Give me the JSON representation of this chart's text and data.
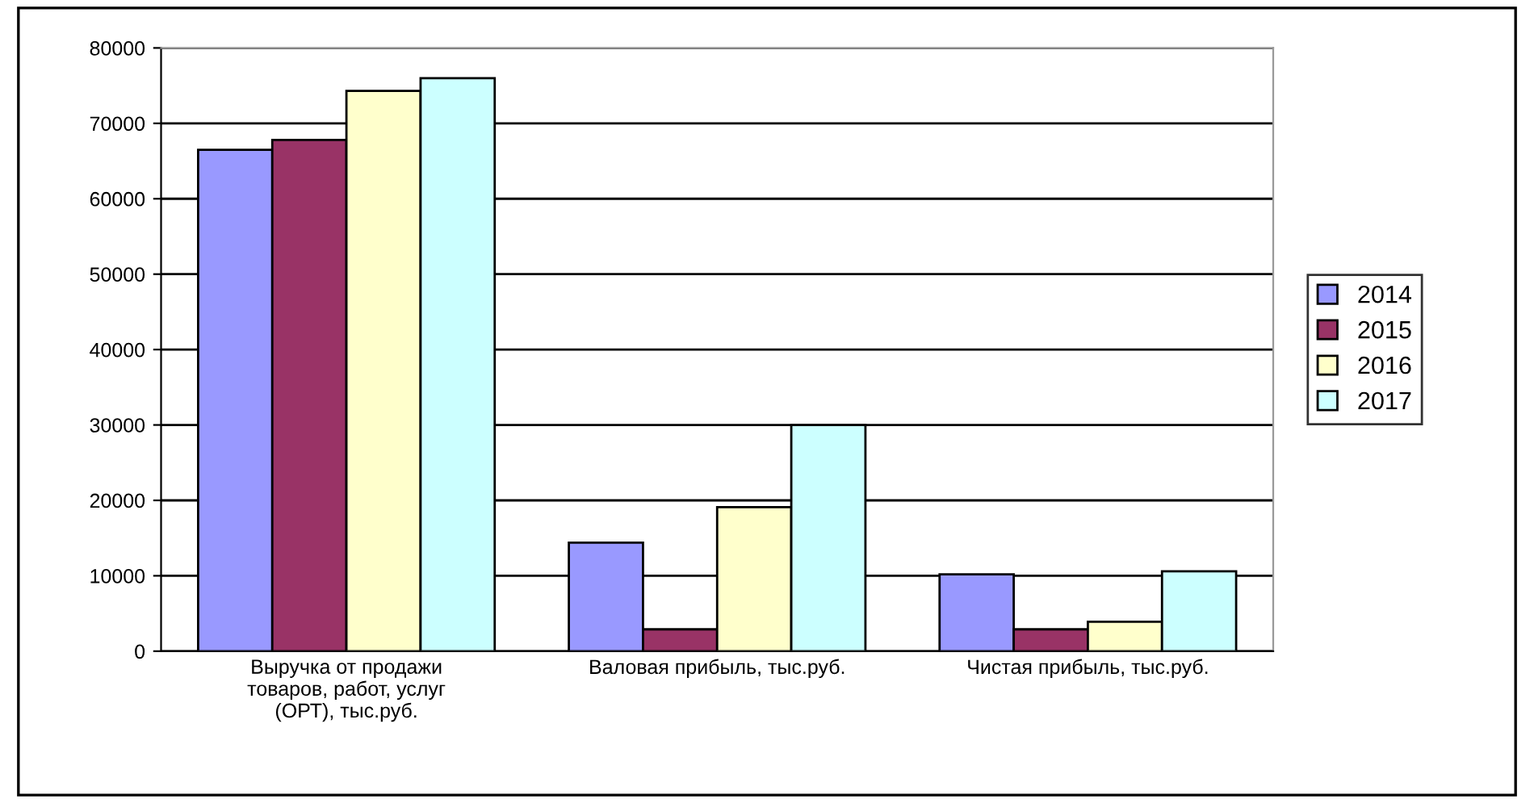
{
  "chart_data": {
    "type": "bar",
    "categories": [
      "Выручка от продажи\nтоваров, работ, услуг\n(ОРТ), тыс.руб.",
      "Валовая прибыль, тыс.руб.",
      "Чистая прибыль, тыс.руб."
    ],
    "series": [
      {
        "name": "2014",
        "color": "#9999ff",
        "values": [
          66500,
          14400,
          10200
        ]
      },
      {
        "name": "2015",
        "color": "#993366",
        "values": [
          67800,
          2900,
          2900
        ]
      },
      {
        "name": "2016",
        "color": "#ffffcc",
        "values": [
          74300,
          19100,
          3900
        ]
      },
      {
        "name": "2017",
        "color": "#ccffff",
        "values": [
          76000,
          30000,
          10600
        ]
      }
    ],
    "ylim": [
      0,
      80000
    ],
    "yticks": [
      0,
      10000,
      20000,
      30000,
      40000,
      50000,
      60000,
      70000,
      80000
    ],
    "grid": "y",
    "legend": "right"
  }
}
